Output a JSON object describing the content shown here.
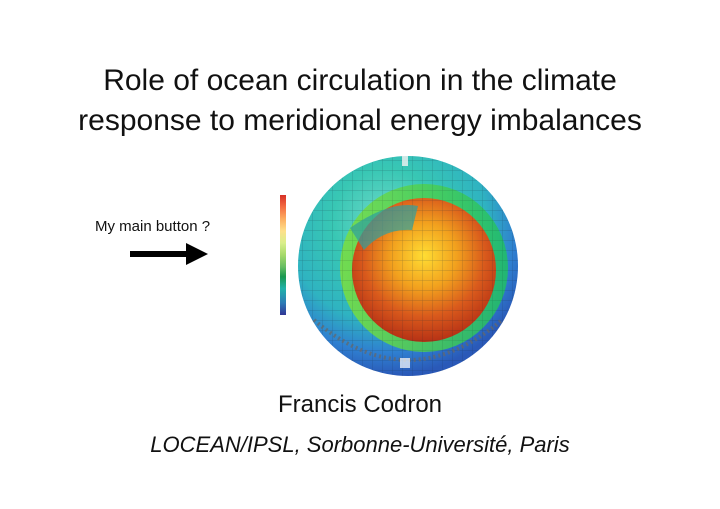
{
  "slide": {
    "title_line1": "Role of ocean circulation in the climate",
    "title_line2": "response to meridional energy imbalances",
    "button_label": "My main button ?",
    "author": "Francis Codron",
    "affiliation": "LOCEAN/IPSL, Sorbonne-Université, Paris"
  },
  "graphics": {
    "arrow_icon": "arrow-right-icon",
    "globe_image": "cutaway-earth-model",
    "colorbar": "vertical-color-scale"
  }
}
